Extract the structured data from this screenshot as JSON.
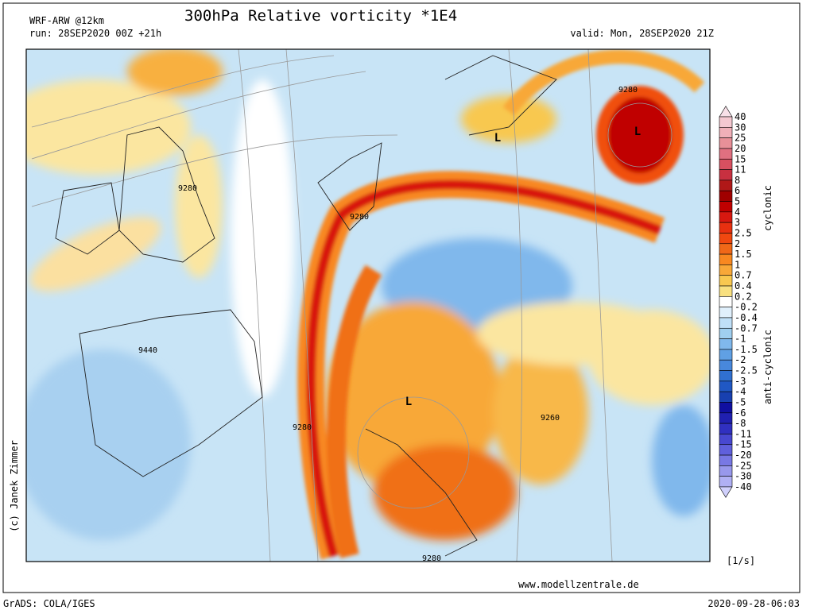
{
  "header": {
    "model": "WRF-ARW @12km",
    "title": "300hPa Relative vorticity *1E4",
    "run": "run: 28SEP2020 00Z +21h",
    "valid": "valid: Mon, 28SEP2020 21Z"
  },
  "map": {
    "contour_labels": [
      "9280",
      "9280",
      "9280",
      "9440",
      "9280",
      "9260",
      "9280"
    ],
    "lows": [
      "L",
      "L",
      "L"
    ]
  },
  "legend": {
    "levels": [
      "40",
      "30",
      "25",
      "20",
      "15",
      "11",
      "8",
      "6",
      "5",
      "4",
      "3",
      "2.5",
      "2",
      "1.5",
      "1",
      "0.7",
      "0.4",
      "0.2",
      "-0.2",
      "-0.4",
      "-0.7",
      "-1",
      "-1.5",
      "-2",
      "-2.5",
      "-3",
      "-4",
      "-5",
      "-6",
      "-8",
      "-11",
      "-15",
      "-20",
      "-25",
      "-30",
      "-40"
    ],
    "colors": [
      "#f8e0e8",
      "#f4c8d0",
      "#f0b0b8",
      "#e89098",
      "#e07080",
      "#d85060",
      "#c83040",
      "#b01818",
      "#a00000",
      "#c00000",
      "#d81810",
      "#e83010",
      "#f04810",
      "#f06818",
      "#f88820",
      "#f8a838",
      "#f8c850",
      "#f8e080",
      "#ffffff",
      "#e0f0fc",
      "#c0e0f8",
      "#a0cff0",
      "#80b8ec",
      "#60a0e4",
      "#4888dc",
      "#3070d0",
      "#2058c4",
      "#1840b0",
      "#1010a0",
      "#2020b0",
      "#3030c0",
      "#4848d0",
      "#6060dc",
      "#7878e4",
      "#9898ec",
      "#b0b0f4",
      "#d0d0fc"
    ],
    "cyclonic": "cyclonic",
    "anticyclonic": "anti-cyclonic",
    "unit": "[1/s]"
  },
  "footer": {
    "copyright": "(c) Janek Zimmer",
    "website": "www.modellzentrale.de",
    "grads": "GrADS: COLA/IGES",
    "timestamp": "2020-09-28-06:03"
  }
}
